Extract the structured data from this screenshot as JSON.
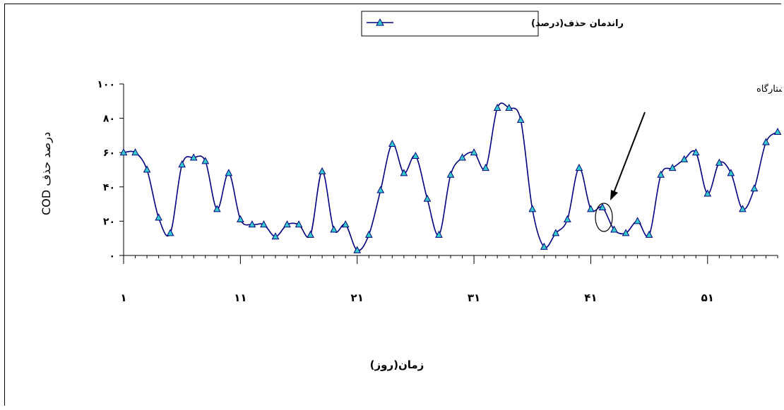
{
  "chart_data": {
    "type": "line",
    "title": "",
    "xlabel": "زمان(روز)",
    "ylabel": "درصد حذف COD",
    "ylim": [
      0,
      100
    ],
    "y_ticks": [
      0,
      20,
      40,
      60,
      80,
      100
    ],
    "y_tick_labels": [
      "۰",
      "۲۰",
      "۴۰",
      "۶۰",
      "۸۰",
      "۱۰۰"
    ],
    "xlim": [
      1,
      57
    ],
    "x_ticks": [
      1,
      11,
      21,
      31,
      41,
      51
    ],
    "x_tick_labels": [
      "۱",
      "۱۱",
      "۲۱",
      "۳۱",
      "۴۱",
      "۵۱"
    ],
    "grid": false,
    "legend_position": "top-center",
    "line_color": "#000080",
    "marker_color": "#33cccc",
    "annotation": "تلقیح سیستم با لجن کشتارگاه",
    "annotation_day": 42,
    "series": [
      {
        "name": "راندمان حذف(درصد)",
        "x": [
          1,
          2,
          3,
          4,
          5,
          6,
          7,
          8,
          9,
          10,
          11,
          12,
          13,
          14,
          15,
          16,
          17,
          18,
          19,
          20,
          21,
          22,
          23,
          24,
          25,
          26,
          27,
          28,
          29,
          30,
          31,
          32,
          33,
          34,
          35,
          36,
          37,
          38,
          39,
          40,
          41,
          42,
          43,
          44,
          45,
          46,
          47,
          48,
          49,
          50,
          51,
          52,
          53,
          54,
          55,
          56,
          57
        ],
        "y": [
          60,
          60,
          50,
          22,
          13,
          53,
          57,
          55,
          27,
          48,
          21,
          18,
          18,
          11,
          18,
          18,
          12,
          49,
          15,
          18,
          3,
          12,
          38,
          65,
          48,
          58,
          33,
          12,
          47,
          57,
          60,
          51,
          86,
          86,
          79,
          27,
          5,
          13,
          21,
          51,
          27,
          28,
          15,
          13,
          20,
          12,
          47,
          51,
          56,
          60,
          36,
          54,
          48,
          27,
          39,
          66,
          72
        ]
      }
    ]
  }
}
